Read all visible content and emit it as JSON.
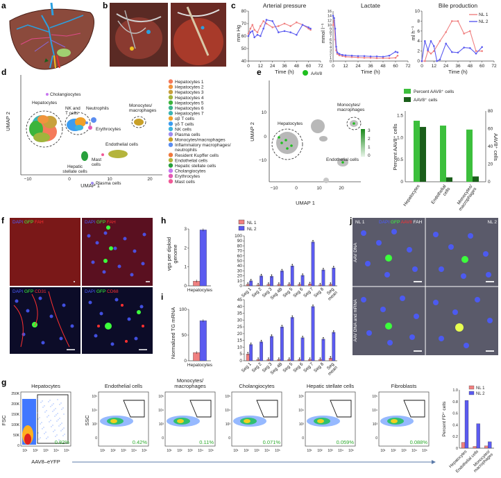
{
  "panels": {
    "a": "a",
    "b": "b",
    "c": "c",
    "d": "d",
    "e": "e",
    "f": "f",
    "g": "g",
    "h": "h",
    "i": "i",
    "j": "j"
  },
  "colors": {
    "nl1": "#f08080",
    "nl2": "#5b5bf0",
    "aav8_light": "#3cbf3c",
    "aav8_dark": "#1a5e1a",
    "gfp": "#3cff3c",
    "red": "#ff3030",
    "dapi": "#4b5bff"
  },
  "panel_c": {
    "charts": [
      {
        "title": "Arterial pressure",
        "ylabel": "mm Hg",
        "xlabel": "Time (h)",
        "xticks": [
          "0",
          "12",
          "24",
          "36",
          "48",
          "60",
          "72"
        ],
        "yticks": [
          "40",
          "50",
          "60",
          "70",
          "80"
        ]
      },
      {
        "title": "Lactate",
        "ylabel": "mmol l⁻¹",
        "xlabel": "Time (h)",
        "xticks": [
          "0",
          "12",
          "24",
          "36",
          "48",
          "60",
          "72"
        ],
        "yticks": [
          "0",
          "1",
          "2",
          "3",
          "4",
          "5",
          "6",
          "7",
          "8",
          "9",
          "10",
          "12",
          "14",
          "16"
        ]
      },
      {
        "title": "Bile production",
        "ylabel": "ml h⁻¹",
        "xlabel": "Time (h)",
        "xticks": [
          "0",
          "12",
          "24",
          "36",
          "48",
          "60",
          "72"
        ],
        "yticks": [
          "0",
          "2",
          "4",
          "6",
          "8",
          "10"
        ],
        "legend": [
          "NL 1",
          "NL 2"
        ]
      }
    ]
  },
  "panel_d": {
    "xlabel": "UMAP 1",
    "ylabel": "UMAP 2",
    "xticks": [
      "−10",
      "0",
      "10",
      "20"
    ],
    "cluster_labels": {
      "cholangiocytes": "Cholangiocytes",
      "hepatocytes": "Hepatocytes",
      "nkt": "NK and\nT cells",
      "neutrophils": "Neutrophils",
      "monocytes": "Monocytes/\nmacrophages",
      "erythrocytes": "Erythrocytes",
      "endothelial": "Endothelial cells",
      "mast": "Mast\ncells",
      "stellate": "Hepatic\nstellate cells",
      "plasma": "Plasma cells"
    },
    "legend": [
      {
        "label": "Hepatocytes 1",
        "color": "#f47a5a"
      },
      {
        "label": "Hepatocytes 2",
        "color": "#f0943c"
      },
      {
        "label": "Hepatocytes 3",
        "color": "#c8a03c"
      },
      {
        "label": "Hepatocytes 4",
        "color": "#a0b43c"
      },
      {
        "label": "Hepatocytes 5",
        "color": "#3cb43c"
      },
      {
        "label": "Hepatocytes 6",
        "color": "#3cb48c"
      },
      {
        "label": "Hepatocytes 7",
        "color": "#3cb4b4"
      },
      {
        "label": "αβ T cells",
        "color": "#f0a028"
      },
      {
        "label": "γδ T cells",
        "color": "#3c9cf0"
      },
      {
        "label": "NK cells",
        "color": "#3cb4dc"
      },
      {
        "label": "Plasma cells",
        "color": "#a08cf0"
      },
      {
        "label": "Monocytes/macrophages",
        "color": "#c8a028"
      },
      {
        "label": "Inflammatory macrophages/\nneutrophils",
        "color": "#5a8cf0"
      },
      {
        "label": "Resident Kupffer cells",
        "color": "#f0783c"
      },
      {
        "label": "Endothelial cells",
        "color": "#b4b43c"
      },
      {
        "label": "Hepatic stellate cells",
        "color": "#28a03c"
      },
      {
        "label": "Cholangiocytes",
        "color": "#c878f0"
      },
      {
        "label": "Erythrocytes",
        "color": "#e45ab4"
      },
      {
        "label": "Mast cells",
        "color": "#f05a96"
      }
    ]
  },
  "panel_e": {
    "legend_label": "AAV8",
    "xlabel": "UMAP 1",
    "ylabel": "UMAP 2",
    "xticks": [
      "−10",
      "0",
      "10",
      "20"
    ],
    "yticks": [
      "−10",
      "0",
      "10"
    ],
    "colorbar_ticks": [
      "3",
      "2",
      "1",
      "0"
    ],
    "labels": {
      "hepatocytes": "Hepatocytes",
      "monocytes": "Monocytes/\nmacrophages",
      "endothelial": "Endothelial cells"
    }
  },
  "panel_e_bar": {
    "legend": [
      "Percent AAV8⁺ cells",
      "AAV8⁺ cells"
    ],
    "ylabel_left": "Percent AAV8⁺ cells",
    "ylabel_right": "AAV8⁺ cells",
    "left_ticks": [
      "0",
      "0.5",
      "1.0",
      "1.5"
    ],
    "right_ticks": [
      "0",
      "20",
      "40",
      "60",
      "80"
    ]
  },
  "chart_data": [
    {
      "type": "line",
      "title": "Arterial pressure",
      "xlabel": "Time (h)",
      "ylabel": "mm Hg",
      "xlim": [
        0,
        72
      ],
      "ylim": [
        40,
        80
      ],
      "series": [
        {
          "name": "NL 1",
          "x": [
            0,
            2,
            4,
            6,
            9,
            12,
            15,
            18,
            24,
            30,
            36,
            42,
            48,
            54,
            60,
            62
          ],
          "y": [
            62,
            66,
            69,
            65,
            63,
            68,
            72,
            70,
            67,
            68,
            70,
            68,
            71,
            69,
            66,
            65
          ]
        },
        {
          "name": "NL 2",
          "x": [
            0,
            2,
            4,
            6,
            9,
            12,
            15,
            18,
            24,
            30,
            36,
            42,
            48,
            54,
            60,
            62
          ],
          "y": [
            60,
            63,
            64,
            59,
            61,
            60,
            66,
            73,
            72,
            63,
            64,
            63,
            61,
            69,
            67,
            66
          ]
        }
      ]
    },
    {
      "type": "line",
      "title": "Lactate",
      "xlabel": "Time (h)",
      "ylabel": "mmol l⁻¹",
      "xlim": [
        0,
        72
      ],
      "series": [
        {
          "name": "NL 1",
          "x": [
            0,
            1,
            2,
            3,
            4,
            6,
            9,
            12,
            18,
            24,
            30,
            36,
            42,
            48,
            54,
            60,
            62
          ],
          "y": [
            10,
            12,
            6,
            3,
            2,
            1.6,
            1.4,
            1.2,
            1.1,
            1.0,
            0.9,
            0.9,
            0.8,
            0.8,
            0.8,
            0.9,
            1.5
          ]
        },
        {
          "name": "NL 2",
          "x": [
            0,
            1,
            2,
            3,
            4,
            6,
            9,
            12,
            18,
            24,
            30,
            36,
            42,
            48,
            54,
            60,
            62
          ],
          "y": [
            14,
            13,
            9,
            4,
            2.4,
            2.0,
            1.7,
            1.6,
            1.5,
            1.4,
            1.4,
            1.3,
            1.3,
            1.2,
            1.5,
            2.6,
            2.4
          ]
        }
      ]
    },
    {
      "type": "line",
      "title": "Bile production",
      "xlabel": "Time (h)",
      "ylabel": "ml h⁻¹",
      "xlim": [
        0,
        72
      ],
      "ylim": [
        0,
        10
      ],
      "series": [
        {
          "name": "NL 1",
          "x": [
            0,
            3,
            6,
            9,
            12,
            18,
            24,
            30,
            36,
            42,
            48,
            54,
            60
          ],
          "y": [
            0,
            0,
            2,
            1.5,
            2,
            4,
            5.8,
            8,
            8,
            5.5,
            6,
            2,
            2
          ]
        },
        {
          "name": "NL 2",
          "x": [
            0,
            3,
            6,
            9,
            12,
            15,
            18,
            24,
            30,
            36,
            42,
            48,
            54,
            60
          ],
          "y": [
            0,
            4,
            2.2,
            4,
            3,
            0,
            0.3,
            3.5,
            1.8,
            1.7,
            2.7,
            2.6,
            1.5,
            2.8
          ]
        }
      ]
    },
    {
      "type": "bar",
      "categories": [
        "Hepatocytes",
        "Endothelial\ncells",
        "Monocytes/\nmacrophages"
      ],
      "series": [
        {
          "name": "Percent AAV8⁺ cells",
          "values": [
            1.38,
            1.27,
            1.18
          ]
        },
        {
          "name": "AAV8⁺ cells",
          "values": [
            62,
            5,
            6
          ]
        }
      ],
      "ylabel": "Percent AAV8⁺ cells",
      "ylim": [
        0,
        1.6
      ],
      "y2label": "AAV8⁺ cells",
      "y2lim": [
        0,
        80
      ]
    },
    {
      "type": "bar",
      "categories": [
        "Hepatocytes"
      ],
      "series": [
        {
          "name": "NL 1",
          "values": [
            0.25
          ]
        },
        {
          "name": "NL 2",
          "values": [
            2.95
          ]
        }
      ],
      "ylabel": "vgs per diploid genome",
      "ylim": [
        0,
        3
      ]
    },
    {
      "type": "bar",
      "categories": [
        "Seg 1",
        "Seg 2",
        "Seg 3",
        "Seg 4B",
        "Seg 5",
        "Seg 6",
        "Seg 7",
        "Seg 8",
        "Seg mean"
      ],
      "series": [
        {
          "name": "NL 1",
          "values": [
            3,
            2,
            3,
            3,
            3,
            3,
            4,
            2,
            3
          ]
        },
        {
          "name": "NL 2",
          "values": [
            10,
            20,
            19,
            30,
            40,
            21,
            88,
            32,
            36
          ]
        }
      ],
      "ylim": [
        0,
        100
      ]
    },
    {
      "type": "bar",
      "categories": [
        "Hepatocytes"
      ],
      "series": [
        {
          "name": "NL 1",
          "values": [
            16
          ]
        },
        {
          "name": "NL 2",
          "values": [
            78
          ]
        }
      ],
      "ylabel": "Normalized TG mRNA",
      "ylim": [
        0,
        100
      ]
    },
    {
      "type": "bar",
      "categories": [
        "Seg 1",
        "Seg 2",
        "Seg 3",
        "Seg 4B",
        "Seg 5",
        "Seg 6",
        "Seg 7",
        "Seg 8",
        "Seg mean"
      ],
      "series": [
        {
          "name": "NL 1",
          "values": [
            5,
            1,
            1,
            1,
            1,
            1,
            1,
            1,
            2
          ]
        },
        {
          "name": "NL 2",
          "values": [
            12,
            14,
            18,
            25,
            32,
            17,
            40,
            16,
            21
          ]
        }
      ],
      "ylim": [
        0,
        45
      ]
    },
    {
      "type": "bar",
      "categories": [
        "Hepatocytes",
        "Endothelial cells",
        "Monocytes/\nmacrophages"
      ],
      "series": [
        {
          "name": "NL 1",
          "values": [
            0.1,
            0.03,
            0.04
          ]
        },
        {
          "name": "NL 2",
          "values": [
            0.82,
            0.42,
            0.11
          ]
        }
      ],
      "ylabel": "Percent FP⁺ cells",
      "ylim": [
        0,
        1.0
      ]
    }
  ],
  "panel_h": {
    "ylabel1": "vgs per diploid",
    "ylabel2": "genome",
    "left_ticks": [
      "0",
      "1",
      "2",
      "3"
    ],
    "left_category": "Hepatocytes",
    "right_ticks": [
      "0",
      "10",
      "20",
      "30",
      "40",
      "50",
      "60",
      "70",
      "80",
      "90",
      "100"
    ],
    "legend": [
      "NL 1",
      "NL 2"
    ]
  },
  "panel_i": {
    "ylabel": "Normalized TG mRNA",
    "left_ticks": [
      "0",
      "50",
      "100"
    ],
    "left_category": "Hepatocytes",
    "right_ticks": [
      "0",
      "5",
      "10",
      "15",
      "20",
      "25",
      "30",
      "35",
      "40",
      "45"
    ],
    "seg_labels": [
      "Seg 1",
      "Seg 2",
      "Seg 3",
      "Seg 4B",
      "Seg 5",
      "Seg 6",
      "Seg 7",
      "Seg 8",
      "Seg\nmean"
    ]
  },
  "panel_f": {
    "top_left": {
      "a": "DAPI",
      "b": "GFP",
      "c": "FAH"
    },
    "top_right": {
      "a": "DAPI",
      "b": "GFP",
      "c": "FAH"
    },
    "bottom_left": {
      "a": "DAPI",
      "b": "GFP",
      "c": "CD31"
    },
    "bottom_right": {
      "a": "DAPI",
      "b": "GFP",
      "c": "CD68"
    }
  },
  "panel_j": {
    "nl1": "NL 1",
    "nl2": "NL 2",
    "dapi": "DAPI",
    "gfp": "GFP",
    "aav8": "AAV8",
    "fah": "FAH",
    "row1": "AAV DNA",
    "row2": "AAV DNA and mRNA"
  },
  "panel_g": {
    "x_axis_label": "AAV8–eYFP",
    "fsc": "FSC",
    "ssc": "SSC",
    "y_ticks": [
      "250K",
      "200K",
      "150K",
      "100K",
      "50K",
      "0"
    ],
    "x_ticks": [
      "10¹",
      "10²",
      "10³",
      "10⁴",
      "10⁵"
    ],
    "plots": [
      {
        "title": "Hepatocytes",
        "pct": "0.82%"
      },
      {
        "title": "Endothelial cells",
        "pct": "0.42%"
      },
      {
        "title": "Monocytes/\nmacrophages",
        "pct": "0.11%"
      },
      {
        "title": "Cholangiocytes",
        "pct": "0.071%"
      },
      {
        "title": "Hepatic stellate cells",
        "pct": "0.059%"
      },
      {
        "title": "Fibroblasts",
        "pct": "0.088%"
      }
    ],
    "bar_ticks": [
      "0",
      "0.2",
      "0.4",
      "0.6",
      "0.8",
      "1.0"
    ],
    "bar_legend": [
      "NL 1",
      "NL 2"
    ],
    "bar_ylabel": "Percent FP⁺ cells",
    "bar_categories": [
      "Hepatocytes",
      "Endothelial cells",
      "Monocytes/\nmacrophages"
    ]
  }
}
